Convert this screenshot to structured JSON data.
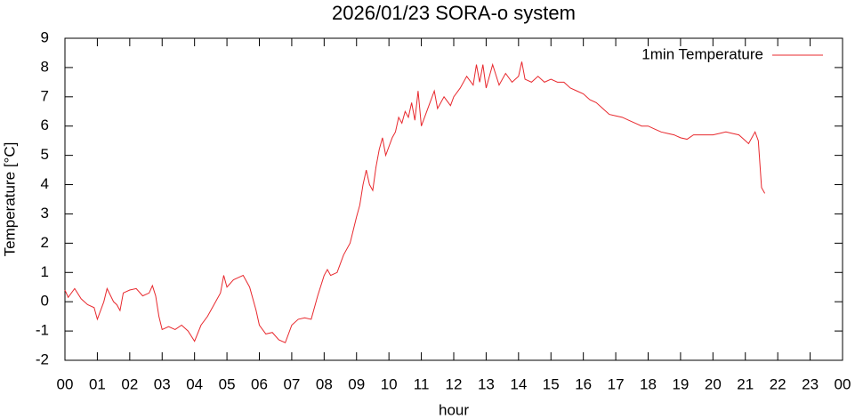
{
  "chart_data": {
    "type": "line",
    "title": "2026/01/23 SORA-o system",
    "x_label": "hour",
    "y_label": "Temperature [°C]",
    "xlim": [
      0,
      24
    ],
    "xticks": [
      {
        "value": 0,
        "label": "00"
      },
      {
        "value": 1,
        "label": "01"
      },
      {
        "value": 2,
        "label": "02"
      },
      {
        "value": 3,
        "label": "03"
      },
      {
        "value": 4,
        "label": "04"
      },
      {
        "value": 5,
        "label": "05"
      },
      {
        "value": 6,
        "label": "06"
      },
      {
        "value": 7,
        "label": "07"
      },
      {
        "value": 8,
        "label": "08"
      },
      {
        "value": 9,
        "label": "09"
      },
      {
        "value": 10,
        "label": "10"
      },
      {
        "value": 11,
        "label": "11"
      },
      {
        "value": 12,
        "label": "12"
      },
      {
        "value": 13,
        "label": "13"
      },
      {
        "value": 14,
        "label": "14"
      },
      {
        "value": 15,
        "label": "15"
      },
      {
        "value": 16,
        "label": "16"
      },
      {
        "value": 17,
        "label": "17"
      },
      {
        "value": 18,
        "label": "18"
      },
      {
        "value": 19,
        "label": "19"
      },
      {
        "value": 20,
        "label": "20"
      },
      {
        "value": 21,
        "label": "21"
      },
      {
        "value": 22,
        "label": "22"
      },
      {
        "value": 23,
        "label": "23"
      },
      {
        "value": 24,
        "label": "00"
      }
    ],
    "ylim": [
      -2,
      9
    ],
    "yticks": [
      -2,
      -1,
      0,
      1,
      2,
      3,
      4,
      5,
      6,
      7,
      8,
      9
    ],
    "legend": "top-right",
    "x": [
      0.0,
      0.1,
      0.3,
      0.5,
      0.7,
      0.9,
      1.0,
      1.2,
      1.3,
      1.5,
      1.6,
      1.7,
      1.8,
      2.0,
      2.2,
      2.4,
      2.6,
      2.7,
      2.8,
      2.9,
      3.0,
      3.2,
      3.4,
      3.6,
      3.8,
      4.0,
      4.2,
      4.4,
      4.6,
      4.8,
      4.9,
      5.0,
      5.2,
      5.4,
      5.5,
      5.7,
      5.9,
      6.0,
      6.2,
      6.4,
      6.6,
      6.8,
      7.0,
      7.2,
      7.4,
      7.6,
      7.8,
      8.0,
      8.1,
      8.2,
      8.4,
      8.6,
      8.8,
      9.0,
      9.1,
      9.2,
      9.3,
      9.4,
      9.5,
      9.6,
      9.7,
      9.8,
      9.9,
      10.0,
      10.1,
      10.2,
      10.3,
      10.4,
      10.5,
      10.6,
      10.7,
      10.8,
      10.9,
      11.0,
      11.2,
      11.4,
      11.5,
      11.7,
      11.9,
      12.0,
      12.2,
      12.4,
      12.6,
      12.7,
      12.8,
      12.9,
      13.0,
      13.2,
      13.4,
      13.6,
      13.8,
      14.0,
      14.1,
      14.2,
      14.4,
      14.6,
      14.8,
      15.0,
      15.2,
      15.4,
      15.6,
      15.8,
      16.0,
      16.2,
      16.4,
      16.6,
      16.8,
      17.0,
      17.2,
      17.4,
      17.6,
      17.8,
      18.0,
      18.2,
      18.4,
      18.6,
      18.8,
      19.0,
      19.2,
      19.4,
      19.6,
      19.8,
      20.0,
      20.2,
      20.4,
      20.6,
      20.8,
      21.0,
      21.1,
      21.2,
      21.3,
      21.4,
      21.5,
      21.6
    ],
    "series": [
      {
        "name": "1min Temperature",
        "color": "#e8282d",
        "values": [
          0.4,
          0.15,
          0.45,
          0.1,
          -0.1,
          -0.2,
          -0.6,
          0.0,
          0.45,
          0.0,
          -0.1,
          -0.3,
          0.3,
          0.4,
          0.45,
          0.2,
          0.3,
          0.55,
          0.2,
          -0.5,
          -0.95,
          -0.85,
          -0.95,
          -0.8,
          -1.0,
          -1.35,
          -0.8,
          -0.5,
          -0.1,
          0.3,
          0.9,
          0.5,
          0.75,
          0.85,
          0.9,
          0.5,
          -0.3,
          -0.8,
          -1.1,
          -1.05,
          -1.3,
          -1.4,
          -0.8,
          -0.6,
          -0.55,
          -0.6,
          0.2,
          0.9,
          1.1,
          0.9,
          1.0,
          1.6,
          2.0,
          2.9,
          3.3,
          4.0,
          4.5,
          4.0,
          3.8,
          4.6,
          5.2,
          5.6,
          5.0,
          5.3,
          5.6,
          5.8,
          6.3,
          6.1,
          6.5,
          6.3,
          6.8,
          6.2,
          7.2,
          6.0,
          6.6,
          7.2,
          6.6,
          7.0,
          6.7,
          7.0,
          7.3,
          7.7,
          7.4,
          8.1,
          7.5,
          8.1,
          7.3,
          8.1,
          7.4,
          7.8,
          7.5,
          7.7,
          8.2,
          7.6,
          7.5,
          7.7,
          7.5,
          7.6,
          7.5,
          7.5,
          7.3,
          7.2,
          7.1,
          6.9,
          6.8,
          6.6,
          6.4,
          6.35,
          6.3,
          6.2,
          6.1,
          6.0,
          6.0,
          5.9,
          5.8,
          5.75,
          5.7,
          5.6,
          5.55,
          5.7,
          5.7,
          5.7,
          5.7,
          5.75,
          5.8,
          5.75,
          5.7,
          5.5,
          5.4,
          5.6,
          5.8,
          5.5,
          3.9,
          3.7
        ]
      }
    ]
  }
}
